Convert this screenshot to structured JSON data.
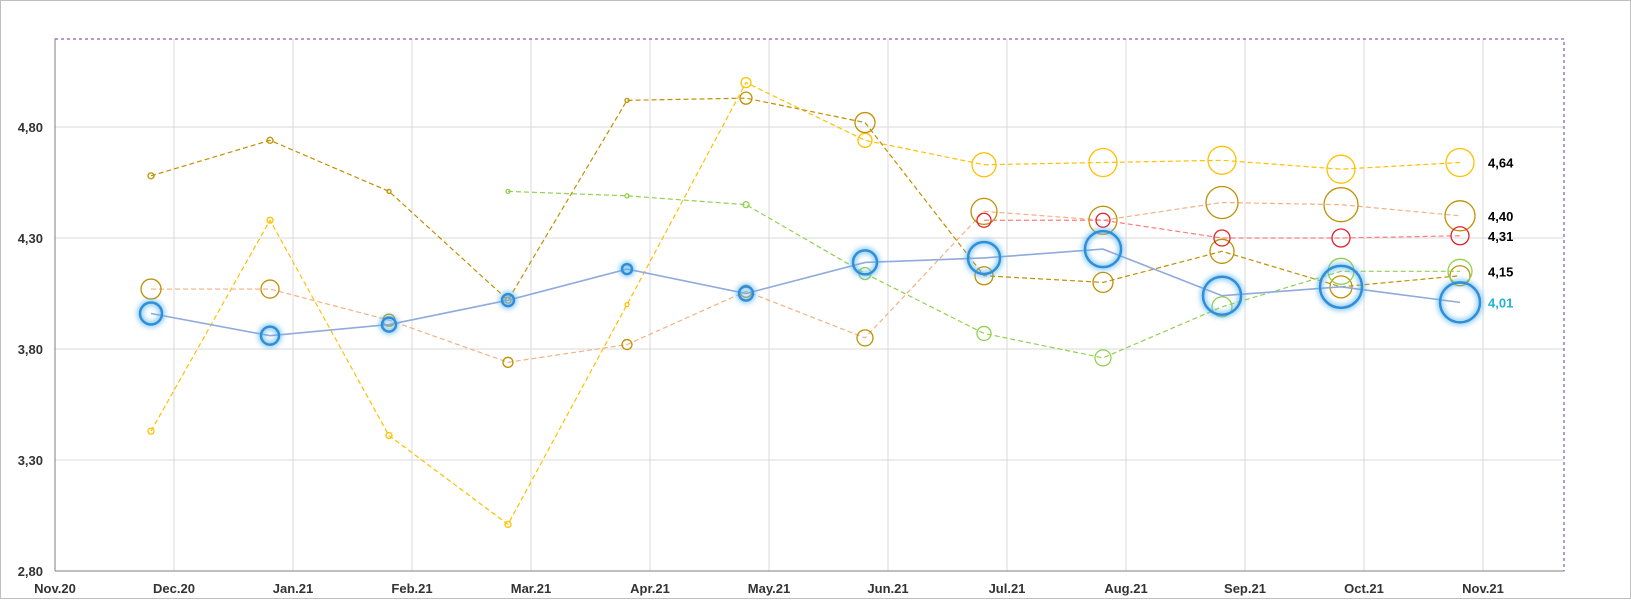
{
  "chart_data": {
    "type": "bubble-line",
    "x_ticks": [
      "Nov.20",
      "Dec.20",
      "Jan.21",
      "Feb.21",
      "Mar.21",
      "Apr.21",
      "May.21",
      "Jun.21",
      "Jul.21",
      "Aug.21",
      "Sep.21",
      "Oct.21",
      "Nov.21"
    ],
    "y_ticks": [
      "2,80",
      "3,30",
      "3,80",
      "4,30",
      "4,80"
    ],
    "ylim": [
      2.8,
      5.2
    ],
    "grid": true,
    "categories": [
      "Dec.20",
      "Jan.21",
      "Feb.21",
      "Mar.21",
      "Apr.21",
      "May.21",
      "Jun.21",
      "Jul.21",
      "Aug.21",
      "Sep.21",
      "Oct.21",
      "Nov.21"
    ],
    "series": [
      {
        "color": "#8faadc",
        "marker_color": "#2f8fd8",
        "glow": true,
        "line": "solid",
        "values": [
          3.96,
          3.86,
          3.91,
          4.02,
          4.16,
          4.05,
          4.19,
          4.21,
          4.25,
          4.04,
          4.08,
          4.01
        ],
        "sizes": [
          11,
          9,
          7,
          6,
          5,
          7,
          12,
          16,
          18,
          19,
          21,
          20
        ],
        "end_label": "4,01",
        "end_label_color": "#1fb4d2"
      },
      {
        "color": "#ffc000",
        "marker_color": "#ffc000",
        "line": "dashed",
        "values": [
          3.43,
          4.38,
          3.41,
          3.01,
          4.0,
          5.0,
          4.74,
          4.63,
          4.64,
          4.65,
          4.61,
          4.64
        ],
        "sizes": [
          3,
          3,
          3,
          3,
          2,
          5,
          7,
          12,
          14,
          14,
          14,
          14
        ],
        "end_label": "4,64",
        "end_label_color": "#000000"
      },
      {
        "color": "#f4b183",
        "marker_color": "#bf9000",
        "line": "dashed",
        "values": [
          4.07,
          4.07,
          3.93,
          3.74,
          3.82,
          4.06,
          3.85,
          4.42,
          4.38,
          4.46,
          4.45,
          4.4
        ],
        "sizes": [
          10,
          9,
          6,
          5,
          5,
          6,
          8,
          13,
          14,
          16,
          17,
          15
        ],
        "end_label": "4,40",
        "end_label_color": "#000000"
      },
      {
        "color": "#bf9000",
        "marker_color": "#bf9000",
        "line": "dashed",
        "values": [
          4.58,
          4.74,
          4.51,
          4.02,
          4.92,
          4.93,
          4.82,
          4.13,
          4.1,
          4.24,
          4.08,
          4.13
        ],
        "sizes": [
          3,
          3,
          2,
          3,
          2,
          6,
          10,
          9,
          10,
          12,
          11,
          10
        ],
        "end_label": "",
        "end_label_color": "#000000"
      },
      {
        "color": "#92d050",
        "marker_color": "#92d050",
        "line": "dashed",
        "values": [
          null,
          null,
          null,
          4.51,
          4.49,
          4.45,
          4.14,
          3.87,
          3.76,
          3.99,
          4.15,
          4.15
        ],
        "sizes": [
          0,
          0,
          0,
          2,
          2,
          3,
          6,
          7,
          8,
          10,
          13,
          12
        ],
        "end_label": "4,15",
        "end_label_color": "#000000"
      },
      {
        "color": "#ff7c80",
        "marker_color": "#e0202a",
        "line": "dashed",
        "values": [
          null,
          null,
          null,
          null,
          null,
          null,
          null,
          4.38,
          4.38,
          4.3,
          4.3,
          4.31
        ],
        "sizes": [
          0,
          0,
          0,
          0,
          0,
          0,
          0,
          7,
          7,
          8,
          9,
          9
        ],
        "end_label": "4,31",
        "end_label_color": "#000000"
      }
    ]
  }
}
